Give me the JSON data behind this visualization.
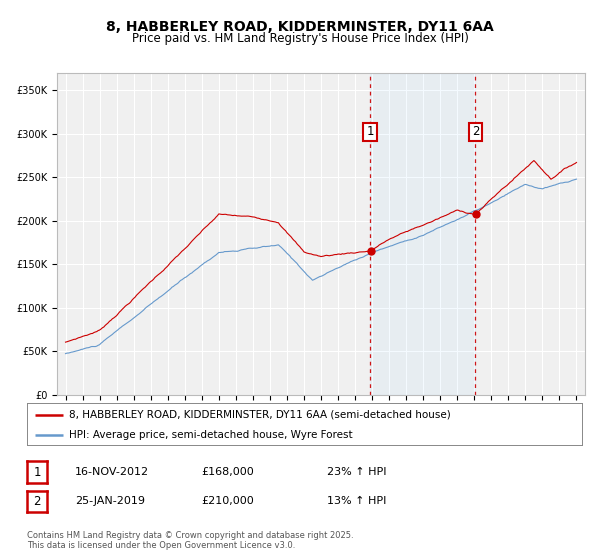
{
  "title": "8, HABBERLEY ROAD, KIDDERMINSTER, DY11 6AA",
  "subtitle": "Price paid vs. HM Land Registry's House Price Index (HPI)",
  "hpi_label": "HPI: Average price, semi-detached house, Wyre Forest",
  "property_label": "8, HABBERLEY ROAD, KIDDERMINSTER, DY11 6AA (semi-detached house)",
  "marker1_date": "16-NOV-2012",
  "marker1_price": 168000,
  "marker1_hpi_pct": "23% ↑ HPI",
  "marker1_year": 2012.88,
  "marker2_date": "25-JAN-2019",
  "marker2_price": 210000,
  "marker2_hpi_pct": "13% ↑ HPI",
  "marker2_year": 2019.07,
  "ylabel_ticks": [
    "£0",
    "£50K",
    "£100K",
    "£150K",
    "£200K",
    "£250K",
    "£300K",
    "£350K"
  ],
  "ytick_vals": [
    0,
    50000,
    100000,
    150000,
    200000,
    250000,
    300000,
    350000
  ],
  "ylim": [
    0,
    370000
  ],
  "xlim_start": 1994.5,
  "xlim_end": 2025.5,
  "property_color": "#cc0000",
  "hpi_color": "#6699cc",
  "background_color": "#ffffff",
  "plot_bg_color": "#f0f0f0",
  "grid_color": "#ffffff",
  "vline_color": "#cc0000",
  "copyright_text": "Contains HM Land Registry data © Crown copyright and database right 2025.\nThis data is licensed under the Open Government Licence v3.0.",
  "title_fontsize": 10,
  "subtitle_fontsize": 8.5,
  "tick_fontsize": 7,
  "legend_fontsize": 7.5,
  "annotation_fontsize": 8
}
